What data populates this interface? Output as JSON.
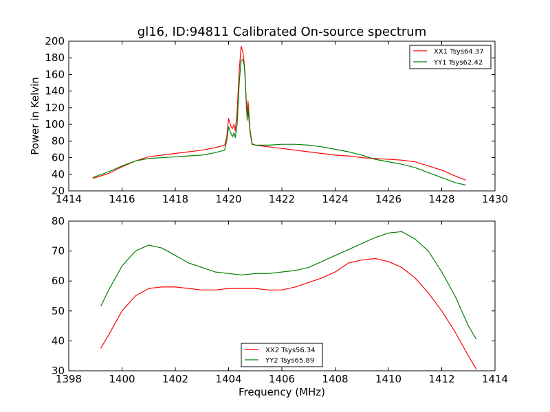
{
  "chart_data": [
    {
      "type": "line",
      "title": "gl16, ID:94811 Calibrated On-source spectrum",
      "xlabel": "",
      "ylabel": "Power in Kelvin",
      "xlim": [
        1414,
        1430
      ],
      "ylim": [
        20,
        200
      ],
      "xticks": [
        "1414",
        "1416",
        "1418",
        "1420",
        "1422",
        "1424",
        "1426",
        "1428",
        "1430"
      ],
      "yticks": [
        "20",
        "40",
        "60",
        "80",
        "100",
        "120",
        "140",
        "160",
        "180",
        "200"
      ],
      "legend_position": "top-right",
      "series": [
        {
          "name": "XX1 Tsys64.37",
          "color": "#ff0000",
          "points": [
            [
              1414.9,
              35
            ],
            [
              1415.5,
              41
            ],
            [
              1416,
              49
            ],
            [
              1416.5,
              56
            ],
            [
              1417,
              61
            ],
            [
              1417.5,
              63
            ],
            [
              1418,
              65
            ],
            [
              1418.5,
              67
            ],
            [
              1419,
              69
            ],
            [
              1419.5,
              72
            ],
            [
              1419.85,
              75
            ],
            [
              1419.93,
              85
            ],
            [
              1420.0,
              107
            ],
            [
              1420.08,
              98
            ],
            [
              1420.15,
              95
            ],
            [
              1420.2,
              100
            ],
            [
              1420.25,
              92
            ],
            [
              1420.32,
              115
            ],
            [
              1420.4,
              165
            ],
            [
              1420.47,
              194
            ],
            [
              1420.53,
              188
            ],
            [
              1420.58,
              175
            ],
            [
              1420.62,
              155
            ],
            [
              1420.67,
              125
            ],
            [
              1420.7,
              112
            ],
            [
              1420.73,
              128
            ],
            [
              1420.76,
              115
            ],
            [
              1420.8,
              95
            ],
            [
              1420.88,
              77
            ],
            [
              1421,
              75
            ],
            [
              1421.5,
              73
            ],
            [
              1422,
              71
            ],
            [
              1422.5,
              69
            ],
            [
              1423,
              67
            ],
            [
              1423.5,
              65
            ],
            [
              1424,
              63
            ],
            [
              1424.5,
              62
            ],
            [
              1425,
              60
            ],
            [
              1425.5,
              59
            ],
            [
              1426,
              58
            ],
            [
              1426.5,
              57
            ],
            [
              1427,
              55
            ],
            [
              1427.5,
              50
            ],
            [
              1428,
              45
            ],
            [
              1428.5,
              38
            ],
            [
              1428.9,
              33
            ]
          ]
        },
        {
          "name": "YY1 Tsys62.42",
          "color": "#008000",
          "points": [
            [
              1414.9,
              36
            ],
            [
              1415.5,
              43
            ],
            [
              1416,
              50
            ],
            [
              1416.5,
              56
            ],
            [
              1417,
              59
            ],
            [
              1417.5,
              60
            ],
            [
              1418,
              61
            ],
            [
              1418.5,
              62
            ],
            [
              1419,
              63
            ],
            [
              1419.5,
              66
            ],
            [
              1419.85,
              69
            ],
            [
              1419.93,
              80
            ],
            [
              1420.0,
              97
            ],
            [
              1420.08,
              90
            ],
            [
              1420.15,
              85
            ],
            [
              1420.2,
              90
            ],
            [
              1420.25,
              84
            ],
            [
              1420.32,
              100
            ],
            [
              1420.4,
              150
            ],
            [
              1420.47,
              177
            ],
            [
              1420.53,
              178
            ],
            [
              1420.58,
              172
            ],
            [
              1420.62,
              160
            ],
            [
              1420.67,
              120
            ],
            [
              1420.7,
              105
            ],
            [
              1420.73,
              118
            ],
            [
              1420.76,
              108
            ],
            [
              1420.8,
              92
            ],
            [
              1420.88,
              76
            ],
            [
              1421,
              75
            ],
            [
              1421.5,
              75
            ],
            [
              1422,
              76
            ],
            [
              1422.5,
              76
            ],
            [
              1423,
              75
            ],
            [
              1423.5,
              73
            ],
            [
              1424,
              70
            ],
            [
              1424.5,
              67
            ],
            [
              1425,
              63
            ],
            [
              1425.5,
              58
            ],
            [
              1426,
              55
            ],
            [
              1426.5,
              52
            ],
            [
              1427,
              48
            ],
            [
              1427.5,
              42
            ],
            [
              1428,
              36
            ],
            [
              1428.5,
              30
            ],
            [
              1428.9,
              27
            ]
          ]
        }
      ]
    },
    {
      "type": "line",
      "title": "",
      "xlabel": "Frequency (MHz)",
      "ylabel": "",
      "xlim": [
        1398,
        1414
      ],
      "ylim": [
        30,
        80
      ],
      "xticks": [
        "1398",
        "1400",
        "1402",
        "1404",
        "1406",
        "1408",
        "1410",
        "1412",
        "1414"
      ],
      "yticks": [
        "30",
        "40",
        "50",
        "60",
        "70",
        "80"
      ],
      "legend_position": "bottom-center",
      "series": [
        {
          "name": "XX2 Tsys56.34",
          "color": "#ff0000",
          "points": [
            [
              1399.2,
              37.5
            ],
            [
              1399.5,
              42
            ],
            [
              1400,
              50
            ],
            [
              1400.5,
              55
            ],
            [
              1401,
              57.5
            ],
            [
              1401.5,
              58
            ],
            [
              1402,
              58
            ],
            [
              1402.5,
              57.5
            ],
            [
              1403,
              57
            ],
            [
              1403.5,
              57
            ],
            [
              1404,
              57.5
            ],
            [
              1404.5,
              57.5
            ],
            [
              1405,
              57.5
            ],
            [
              1405.5,
              57
            ],
            [
              1406,
              57
            ],
            [
              1406.5,
              58
            ],
            [
              1407,
              59.5
            ],
            [
              1407.5,
              61
            ],
            [
              1408,
              63
            ],
            [
              1408.5,
              66
            ],
            [
              1409,
              67
            ],
            [
              1409.5,
              67.5
            ],
            [
              1410,
              66.5
            ],
            [
              1410.5,
              64.5
            ],
            [
              1411,
              61
            ],
            [
              1411.5,
              56
            ],
            [
              1412,
              50
            ],
            [
              1412.5,
              43
            ],
            [
              1413,
              35
            ],
            [
              1413.3,
              30.5
            ]
          ]
        },
        {
          "name": "YY2 Tsys65.89",
          "color": "#008000",
          "points": [
            [
              1399.2,
              51.5
            ],
            [
              1399.5,
              57
            ],
            [
              1400,
              65
            ],
            [
              1400.5,
              70
            ],
            [
              1401,
              72
            ],
            [
              1401.5,
              71
            ],
            [
              1402,
              68.5
            ],
            [
              1402.5,
              66
            ],
            [
              1403,
              64.5
            ],
            [
              1403.5,
              63
            ],
            [
              1404,
              62.5
            ],
            [
              1404.5,
              62
            ],
            [
              1405,
              62.5
            ],
            [
              1405.5,
              62.5
            ],
            [
              1406,
              63
            ],
            [
              1406.5,
              63.5
            ],
            [
              1407,
              64.5
            ],
            [
              1407.5,
              66.5
            ],
            [
              1408,
              68.5
            ],
            [
              1408.5,
              70.5
            ],
            [
              1409,
              72.5
            ],
            [
              1409.5,
              74.5
            ],
            [
              1410,
              76
            ],
            [
              1410.5,
              76.5
            ],
            [
              1411,
              74
            ],
            [
              1411.5,
              70
            ],
            [
              1412,
              63
            ],
            [
              1412.5,
              55
            ],
            [
              1413,
              45
            ],
            [
              1413.3,
              40.5
            ]
          ]
        }
      ]
    }
  ]
}
